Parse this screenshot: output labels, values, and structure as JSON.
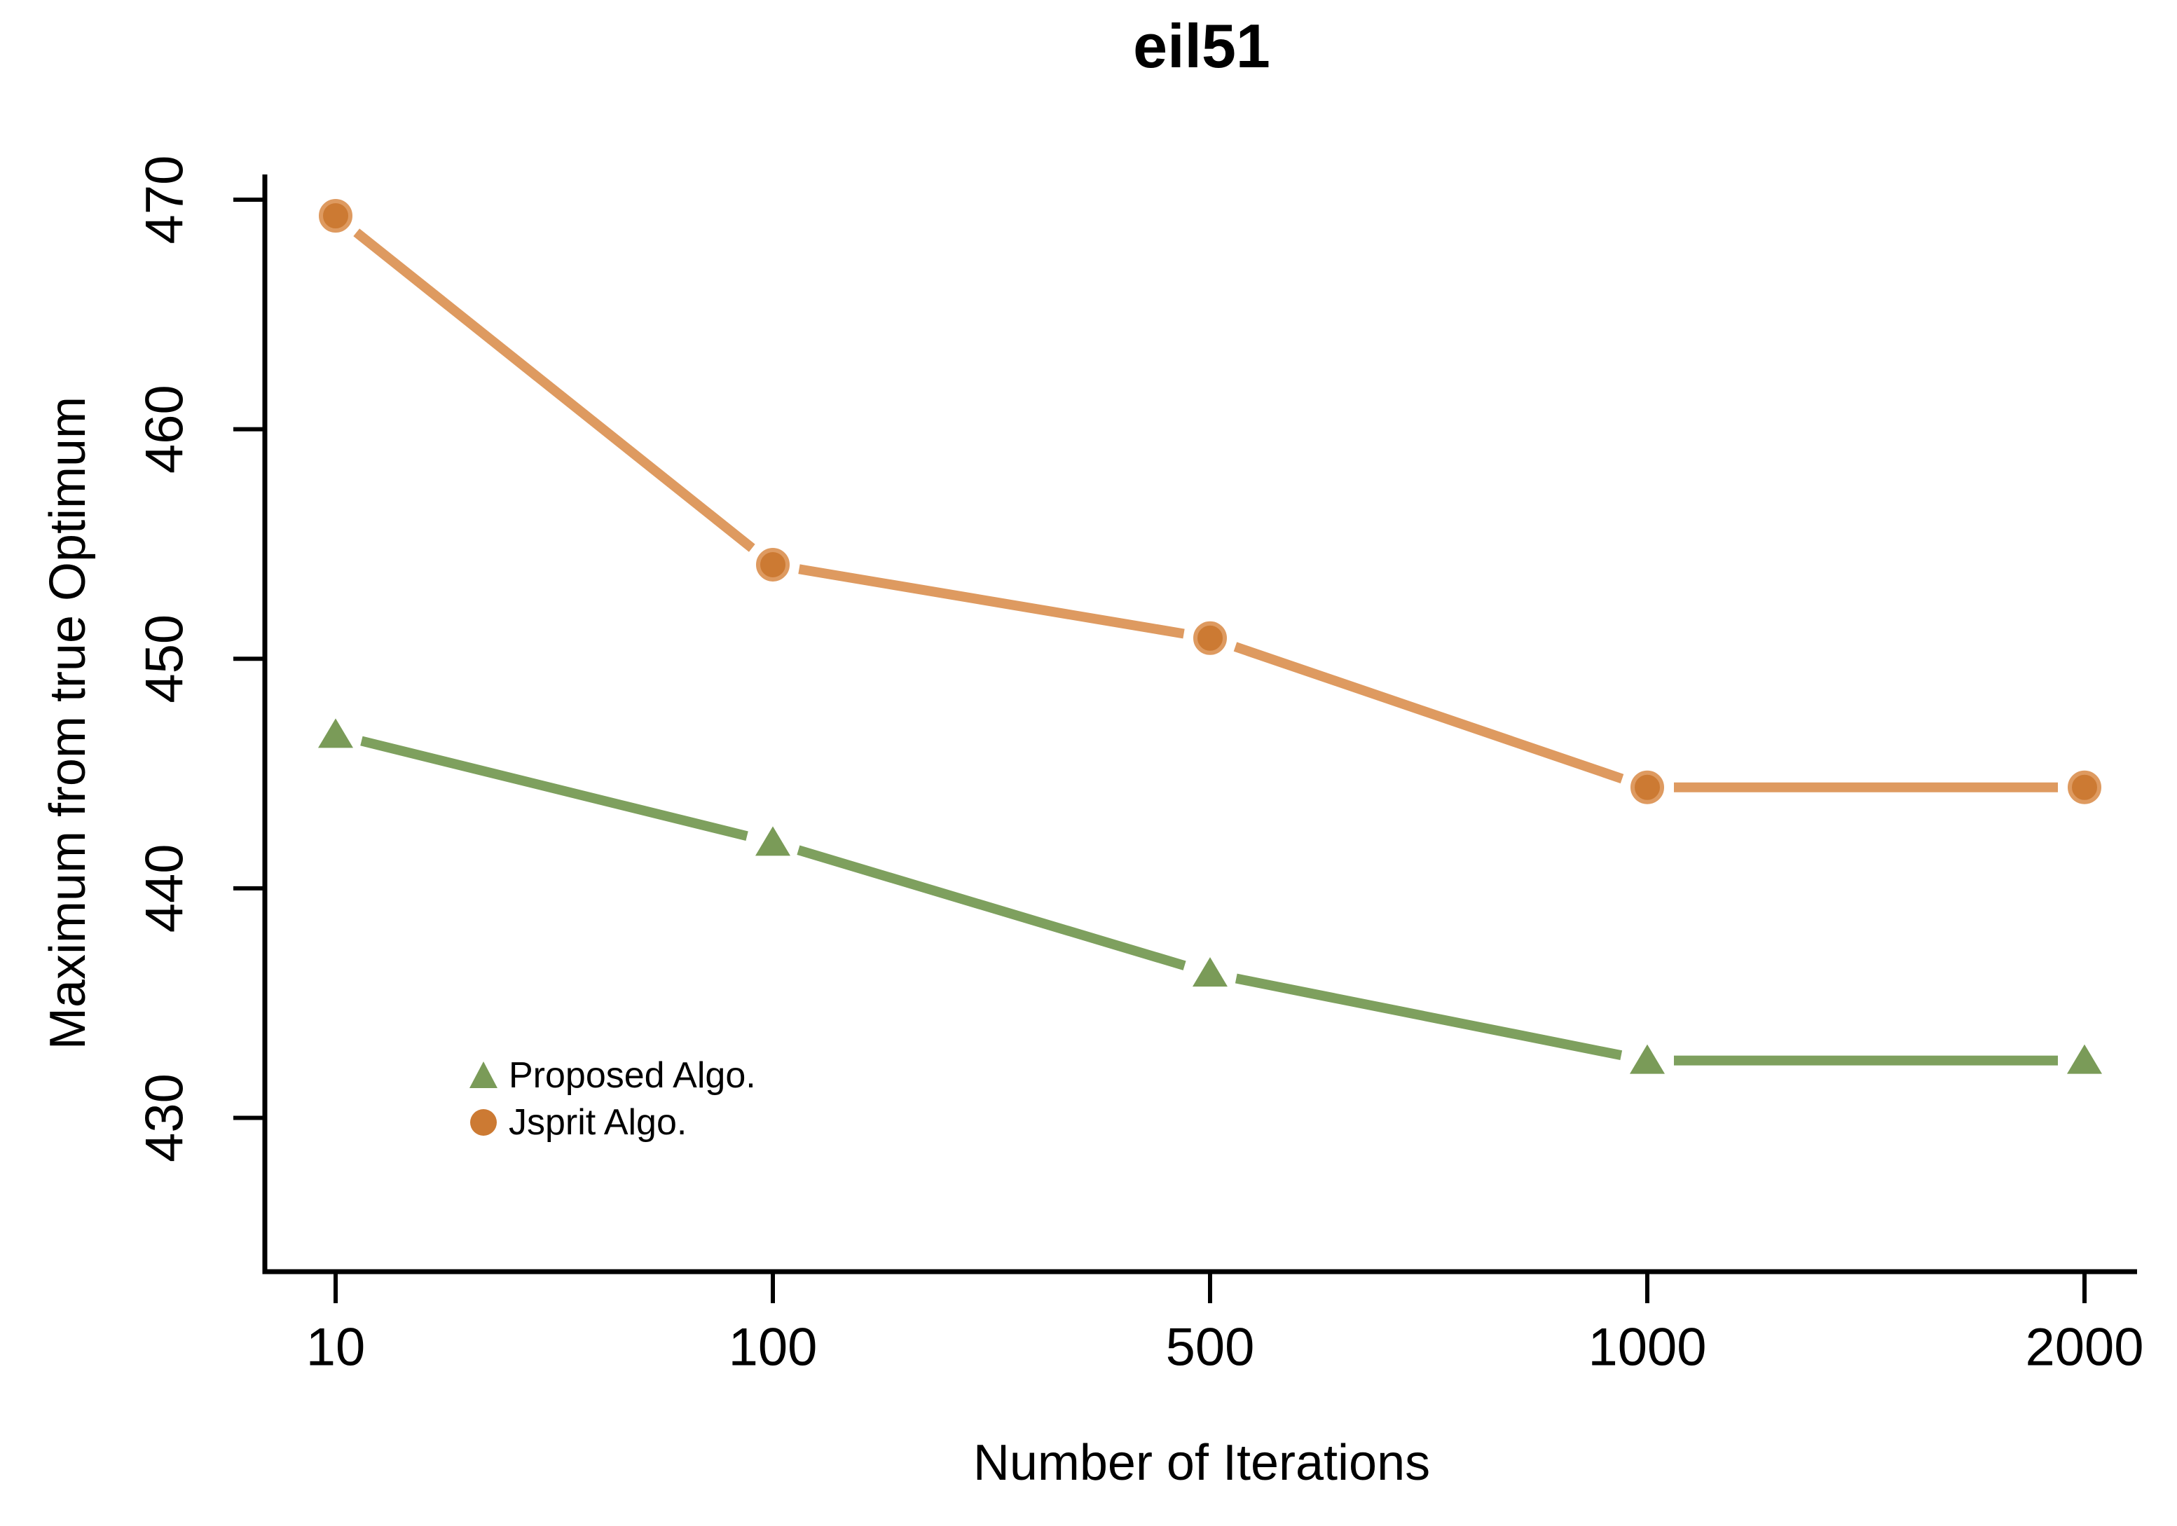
{
  "chart_data": {
    "type": "line",
    "title": "eil51",
    "xlabel": "Number of Iterations",
    "ylabel": "Maximum from true Optimum",
    "categories": [
      "10",
      "100",
      "500",
      "1000",
      "2000"
    ],
    "y_ticks": [
      430,
      440,
      450,
      460,
      470
    ],
    "ylim": [
      423.3,
      471.1
    ],
    "grid": false,
    "legend_position": "inside-bottom-left",
    "series": [
      {
        "name": "Proposed Algo.",
        "marker": "triangle",
        "marker_fill": "#7A9B58",
        "line_color": "#7EA05E",
        "values": [
          446.7,
          442.0,
          436.3,
          432.5,
          432.5
        ]
      },
      {
        "name": "Jsprit Algo.",
        "marker": "circle",
        "marker_fill": "#CC7A33",
        "line_color": "#DE9A60",
        "values": [
          469.3,
          454.1,
          450.9,
          444.4,
          444.4
        ]
      }
    ],
    "axis_color": "#000000"
  }
}
